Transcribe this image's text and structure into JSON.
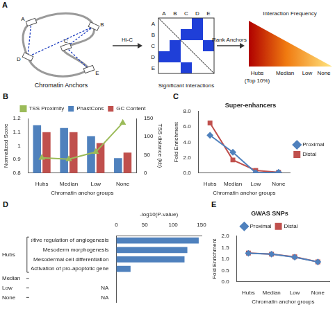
{
  "panel_a": {
    "label": "A",
    "anchors": [
      "A",
      "B",
      "C",
      "D",
      "E"
    ],
    "interactions": [
      [
        "A",
        "D"
      ],
      [
        "B",
        "C"
      ],
      [
        "B",
        "D"
      ],
      [
        "C",
        "E"
      ]
    ],
    "anchors_title": "Chromatin Anchors",
    "step1": "Hi-C",
    "matrix_title": "Significant Interactions",
    "step2": "Rank Anchors",
    "scale_title": "Interaction Frequency",
    "scale_labels": [
      "Hubs",
      "Median",
      "Low",
      "None"
    ],
    "scale_note": "(Top 10%)"
  },
  "chart_data": [
    {
      "label": "B",
      "type": "bar",
      "categories": [
        "Hubs",
        "Median",
        "Low",
        "None"
      ],
      "series": [
        {
          "name": "PhastCons",
          "color": "#4f81bd",
          "values": [
            1.15,
            1.13,
            1.07,
            0.91
          ]
        },
        {
          "name": "GC Content",
          "color": "#c0504d",
          "values": [
            1.1,
            1.1,
            1.02,
            0.95
          ]
        },
        {
          "name": "TSS Proximity",
          "type": "line",
          "axis": "y2",
          "color": "#9bbb59",
          "marker": "triangle",
          "values": [
            42,
            38,
            58,
            138
          ]
        }
      ],
      "x_label": "Chromatin anchor groups",
      "y_label": "Normalized Score",
      "y2_label": "TSS distance (kb)",
      "ylim": [
        0.8,
        1.2
      ],
      "yticks": [
        0.8,
        0.9,
        1,
        1.1,
        1.2
      ],
      "y2lim": [
        0,
        150
      ],
      "y2ticks": [
        0,
        50,
        100,
        150
      ],
      "grid": false,
      "legend": "top"
    },
    {
      "label": "C",
      "type": "line",
      "title": "Super-enhancers",
      "categories": [
        "Hubs",
        "Median",
        "Low",
        "None"
      ],
      "series": [
        {
          "name": "Proximal",
          "color": "#4f81bd",
          "marker": "diamond",
          "values": [
            4.9,
            2.7,
            0.05,
            0.1
          ]
        },
        {
          "name": "Distal",
          "color": "#c0504d",
          "marker": "square",
          "values": [
            6.5,
            1.7,
            0.35,
            0.1
          ]
        }
      ],
      "x_label": "Chromatin anchor groups",
      "y_label": "Fold Enrichment",
      "ylim": [
        0,
        8
      ],
      "yticks": [
        {
          "value": 0,
          "label": "0.0"
        },
        {
          "value": 2,
          "label": "2.0"
        },
        {
          "value": 4,
          "label": "4.0"
        },
        {
          "value": 6,
          "label": "6.0"
        },
        {
          "value": 8,
          "label": "8.0"
        }
      ],
      "grid": false,
      "legend": "right"
    },
    {
      "label": "D",
      "type": "bar",
      "orientation": "horizontal",
      "x_label": "-log10(P-value)",
      "categories": [
        "Positive regulation of angiogenesis",
        "Mesoderm morphogenesis",
        "Mesodermal cell differentiation",
        "Activation of pro-apoptotic gene",
        null,
        "NA",
        "NA"
      ],
      "groups": [
        "Hubs",
        "Hubs",
        "Hubs",
        "Hubs",
        "Median",
        "Low",
        "None"
      ],
      "values": [
        145,
        125,
        120,
        25,
        null,
        null,
        null
      ],
      "color": "#4f81bd",
      "xlim": [
        0,
        150
      ],
      "xticks": [
        0,
        50,
        100,
        150
      ],
      "grid": false
    },
    {
      "label": "E",
      "type": "line",
      "title": "GWAS SNPs",
      "categories": [
        "Hubs",
        "Median",
        "Low",
        "None"
      ],
      "series": [
        {
          "name": "Proximal",
          "color": "#4f81bd",
          "marker": "diamond",
          "values": [
            1.25,
            1.21,
            1.08,
            0.87
          ]
        },
        {
          "name": "Distal",
          "color": "#c0504d",
          "marker": "square",
          "values": [
            1.26,
            1.21,
            1.09,
            0.87
          ]
        }
      ],
      "x_label": "Chromatin anchor groups",
      "y_label": "Fold Enrichment",
      "ylim": [
        0,
        2
      ],
      "yticks": [
        {
          "value": 0,
          "label": "0.0"
        },
        0.5,
        {
          "value": 1,
          "label": "1.0"
        },
        1.5,
        {
          "value": 2,
          "label": "2.0"
        }
      ],
      "grid": false,
      "legend": "top"
    }
  ]
}
